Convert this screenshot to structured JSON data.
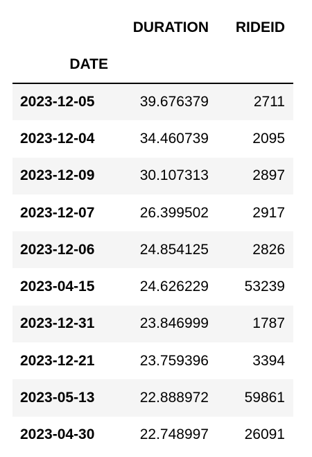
{
  "table": {
    "columns": [
      "DURATION",
      "RIDEID"
    ],
    "index_name": "DATE",
    "rows": [
      {
        "date": "2023-12-05",
        "duration": "39.676379",
        "rideid": "2711"
      },
      {
        "date": "2023-12-04",
        "duration": "34.460739",
        "rideid": "2095"
      },
      {
        "date": "2023-12-09",
        "duration": "30.107313",
        "rideid": "2897"
      },
      {
        "date": "2023-12-07",
        "duration": "26.399502",
        "rideid": "2917"
      },
      {
        "date": "2023-12-06",
        "duration": "24.854125",
        "rideid": "2826"
      },
      {
        "date": "2023-04-15",
        "duration": "24.626229",
        "rideid": "53239"
      },
      {
        "date": "2023-12-31",
        "duration": "23.846999",
        "rideid": "1787"
      },
      {
        "date": "2023-12-21",
        "duration": "23.759396",
        "rideid": "3394"
      },
      {
        "date": "2023-05-13",
        "duration": "22.888972",
        "rideid": "59861"
      },
      {
        "date": "2023-04-30",
        "duration": "22.748997",
        "rideid": "26091"
      }
    ]
  },
  "colors": {
    "stripe": "#f5f5f5",
    "rule": "#000000",
    "text": "#000000"
  }
}
